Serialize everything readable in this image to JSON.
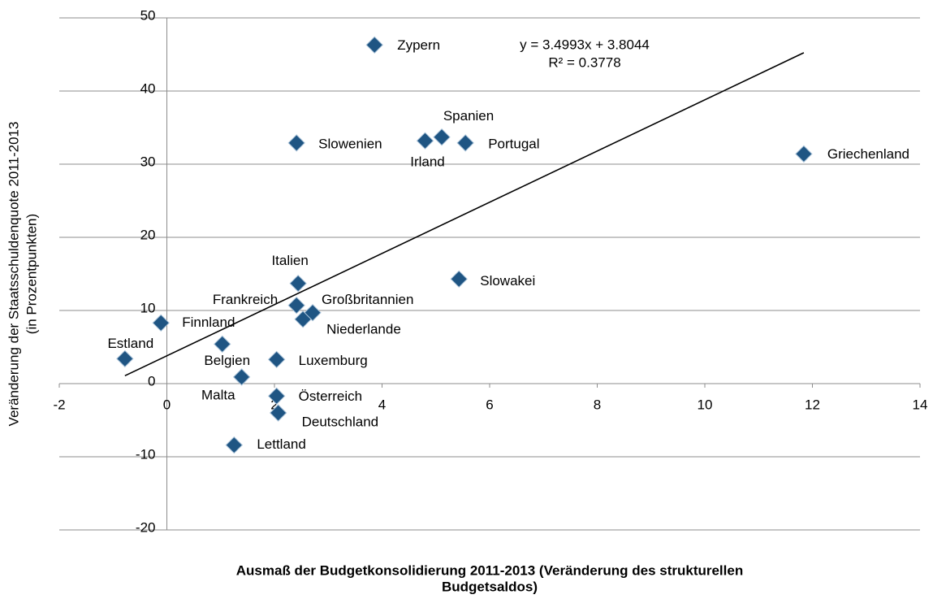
{
  "chart_data": {
    "type": "scatter",
    "x_title": [
      "Ausmaß der Budgetkonsolidierung 2011-2013 (Veränderung des strukturellen",
      "Budgetsaldos)"
    ],
    "y_title": [
      "Veränderung der Staatsschuldenquote 2011-2013",
      "(in Prozentpunkten)"
    ],
    "xlim": [
      -2,
      14
    ],
    "ylim": [
      -20,
      50
    ],
    "xticks": [
      -2,
      0,
      2,
      4,
      6,
      8,
      10,
      12,
      14
    ],
    "yticks": [
      -20,
      -10,
      0,
      10,
      20,
      30,
      40,
      50
    ],
    "grid": true,
    "series": [
      {
        "color": "#1f5583",
        "labels": [
          "Zypern",
          "Spanien",
          "Irland",
          "Portugal",
          "Slowenien",
          "Griechenland",
          "Italien",
          "Slowakei",
          "Frankreich",
          "Großbritannien",
          "Niederlande",
          "Finnland",
          "Belgien",
          "Estland",
          "Luxemburg",
          "Malta",
          "Österreich",
          "Deutschland",
          "Lettland"
        ],
        "x": [
          3.86,
          5.11,
          4.8,
          5.55,
          2.41,
          11.84,
          2.44,
          5.43,
          2.41,
          2.71,
          2.53,
          -0.11,
          1.03,
          -0.78,
          2.04,
          1.39,
          2.04,
          2.07,
          1.25
        ],
        "values": [
          46.3,
          33.7,
          33.2,
          32.9,
          32.9,
          31.4,
          13.7,
          14.3,
          10.7,
          9.7,
          8.8,
          8.3,
          5.4,
          3.4,
          3.3,
          0.9,
          -1.7,
          -4.0,
          -8.4
        ]
      }
    ],
    "trendline": {
      "slope": 3.4993,
      "intercept": 3.8044,
      "equation": "y = 3.4993x + 3.8044",
      "r2": "R² = 0.3778"
    }
  }
}
